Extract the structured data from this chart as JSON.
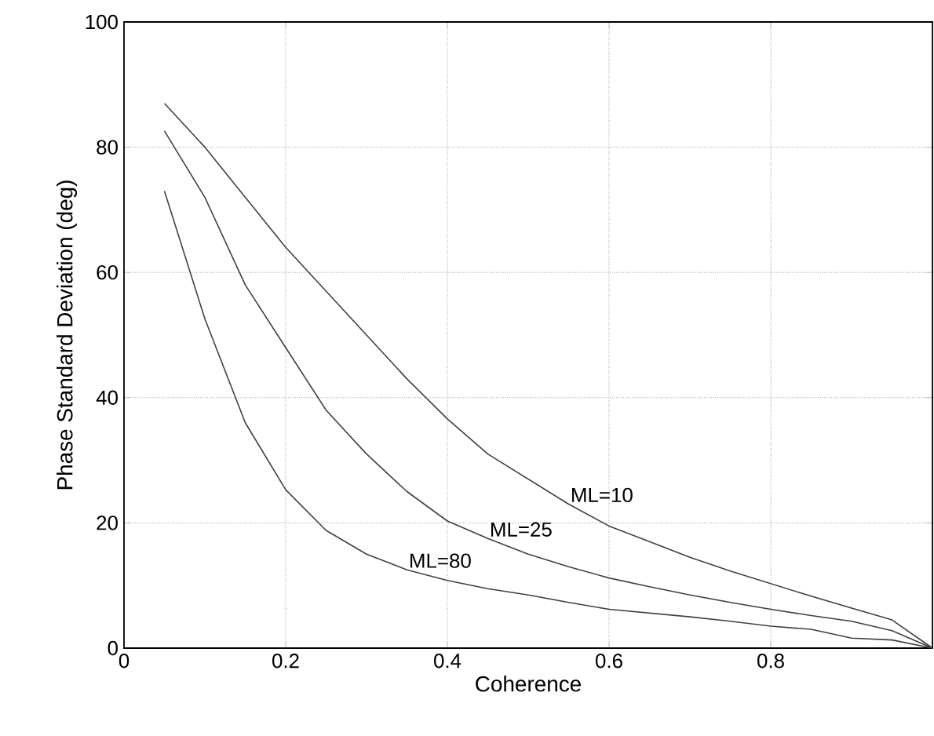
{
  "chart_data": {
    "type": "line",
    "xlabel": "Coherence",
    "ylabel": "Phase Standard Deviation (deg)",
    "xlim": [
      0,
      1
    ],
    "ylim": [
      0,
      100
    ],
    "xticks": [
      0,
      0.2,
      0.4,
      0.6,
      0.8,
      {
        "value": 1,
        "label": null
      }
    ],
    "yticks": [
      0,
      20,
      40,
      60,
      80,
      100
    ],
    "grid": true,
    "x": [
      0.05,
      0.1,
      0.15,
      0.2,
      0.25,
      0.3,
      0.35,
      0.4,
      0.45,
      0.5,
      0.55,
      0.6,
      0.65,
      0.7,
      0.75,
      0.8,
      0.85,
      0.9,
      0.95,
      1
    ],
    "series": [
      {
        "name": "ML=10",
        "color": "#404040",
        "values": [
          87,
          80,
          72,
          64,
          57,
          50,
          43,
          36.6,
          31,
          27,
          23,
          19.5,
          17,
          14.5,
          12.3,
          10.3,
          8.3,
          6.4,
          4.5,
          0
        ]
      },
      {
        "name": "ML=25",
        "color": "#404040",
        "values": [
          82.6,
          72,
          58,
          48,
          38,
          31,
          25,
          20.3,
          17.5,
          15,
          13,
          11.2,
          9.8,
          8.5,
          7.3,
          6.2,
          5.2,
          4.3,
          2.8,
          0
        ]
      },
      {
        "name": "ML=80",
        "color": "#404040",
        "values": [
          73,
          52.6,
          36,
          25.3,
          18.8,
          15,
          12.5,
          10.8,
          9.5,
          8.5,
          7.3,
          6.2,
          5.6,
          5,
          4.3,
          3.5,
          3,
          1.6,
          1.3,
          0
        ]
      }
    ]
  }
}
